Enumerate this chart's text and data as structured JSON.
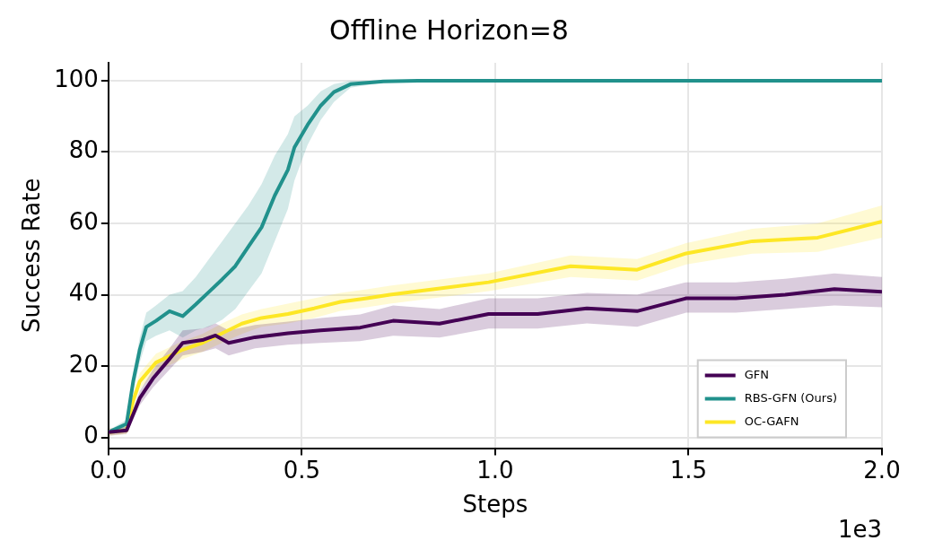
{
  "chart_data": {
    "type": "line",
    "title": "Offline Horizon=8",
    "xlabel": "Steps",
    "ylabel": "Success Rate",
    "annotations": [
      "1e3"
    ],
    "xlim": [
      0,
      2
    ],
    "xticks": [
      {
        "value": 0,
        "label": "0.0"
      },
      0.5,
      {
        "value": 1,
        "label": "1.0"
      },
      1.5,
      {
        "value": 2,
        "label": "2.0"
      }
    ],
    "ylim": [
      -3,
      105
    ],
    "yticks": [
      0,
      20,
      40,
      60,
      80,
      100
    ],
    "grid": true,
    "legend": "bottom right",
    "marker": "none",
    "line_style": "solid",
    "series": [
      {
        "name": "GFN",
        "color": "#440154",
        "x": [
          0,
          0.047,
          0.081,
          0.115,
          0.158,
          0.192,
          0.243,
          0.277,
          0.311,
          0.379,
          0.464,
          0.549,
          0.651,
          0.736,
          0.856,
          0.983,
          1.11,
          1.237,
          1.367,
          1.494,
          1.622,
          1.75,
          1.877,
          2.0
        ],
        "values": [
          1.5,
          2,
          11,
          16.5,
          22,
          26.5,
          27.3,
          28.6,
          26.5,
          28.1,
          29.2,
          30,
          30.8,
          32.7,
          31.9,
          34.6,
          34.6,
          36.2,
          35.4,
          39,
          39,
          40,
          41.6,
          40.8
        ],
        "lower": [
          0.5,
          1,
          9,
          14,
          19,
          23,
          24,
          25,
          23,
          25,
          26,
          26.5,
          27,
          28.5,
          28,
          30.5,
          30.5,
          32,
          31,
          35,
          35,
          36,
          37,
          36.5
        ],
        "upper": [
          2.5,
          3,
          13,
          19,
          25,
          30,
          30.5,
          32,
          30,
          31.5,
          32.5,
          33.5,
          34.5,
          37,
          36,
          39,
          39,
          40.5,
          40,
          43.5,
          43.5,
          44.5,
          46,
          45
        ]
      },
      {
        "name": "RBS-GFN (Ours)",
        "color": "#21918c",
        "x": [
          0,
          0.047,
          0.064,
          0.081,
          0.098,
          0.123,
          0.158,
          0.192,
          0.226,
          0.26,
          0.294,
          0.328,
          0.362,
          0.396,
          0.43,
          0.464,
          0.481,
          0.515,
          0.549,
          0.583,
          0.626,
          0.711,
          0.8,
          1.0,
          1.5,
          2.0
        ],
        "values": [
          1.5,
          3.8,
          15.7,
          24.6,
          31,
          32.7,
          35.4,
          34,
          37.3,
          40.8,
          44.3,
          48,
          53.5,
          58.9,
          67.8,
          75,
          81.3,
          87.6,
          93,
          96.8,
          99,
          99.8,
          100,
          100,
          100,
          100
        ],
        "lower": [
          1,
          2.5,
          13,
          21,
          27,
          28.5,
          30,
          28,
          30,
          31,
          33,
          36,
          41,
          46,
          55,
          64,
          72,
          82,
          89,
          94,
          98,
          99.5,
          100,
          100,
          100,
          100
        ],
        "upper": [
          2,
          5,
          18,
          28,
          35,
          37,
          40,
          41,
          45,
          50,
          55,
          60,
          65,
          71,
          79,
          85,
          90,
          93,
          97,
          99,
          100,
          100,
          100,
          100,
          100,
          100
        ]
      },
      {
        "name": "OC-GAFN",
        "color": "#fde725",
        "x": [
          0,
          0.047,
          0.064,
          0.081,
          0.123,
          0.192,
          0.243,
          0.294,
          0.345,
          0.396,
          0.464,
          0.532,
          0.6,
          0.668,
          0.728,
          0.983,
          1.195,
          1.367,
          1.494,
          1.665,
          1.834,
          2.0
        ],
        "values": [
          1.5,
          2,
          10.3,
          15.7,
          21,
          24.6,
          26.5,
          29.2,
          31.9,
          33.5,
          34.6,
          36.2,
          38,
          39,
          40,
          43.5,
          48,
          47,
          51.6,
          55,
          56,
          60.5
        ],
        "lower": [
          0.5,
          1,
          8.5,
          13.5,
          18.5,
          22,
          24,
          26.5,
          29,
          31,
          32,
          33.5,
          35.5,
          36.5,
          37.5,
          41,
          45,
          44,
          48.5,
          51.5,
          52,
          56
        ],
        "upper": [
          2.5,
          3,
          12,
          18,
          23.5,
          27,
          29,
          32,
          34.5,
          36,
          37.5,
          39,
          40.5,
          41.5,
          42.5,
          46,
          51,
          50,
          54.5,
          58.5,
          60,
          65
        ]
      }
    ]
  }
}
